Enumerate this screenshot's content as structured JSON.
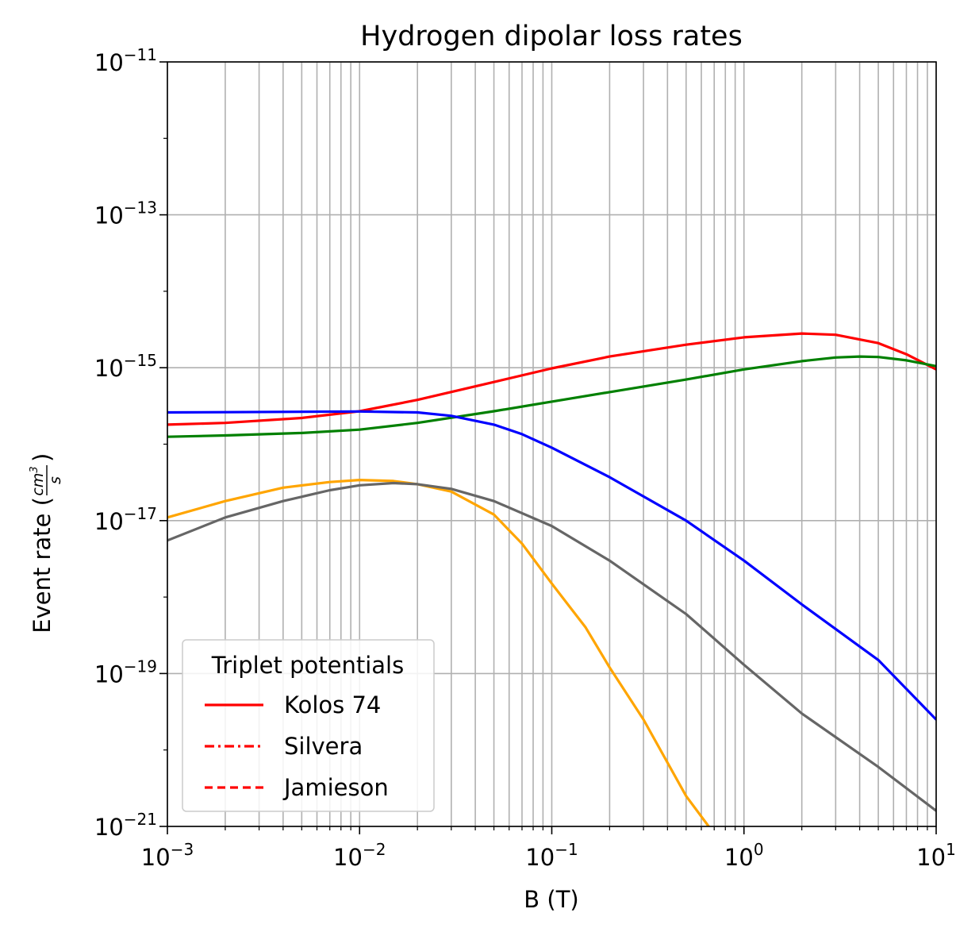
{
  "chart_data": {
    "type": "line",
    "title": "Hydrogen dipolar loss rates",
    "xlabel": "B (T)",
    "ylabel": "Event rate (cm³/s)",
    "ylabel_text": "Event rate (",
    "ylabel_frac_num": "cm",
    "ylabel_frac_num_exp": "3",
    "ylabel_frac_den": "s",
    "ylabel_close": ")",
    "xscale": "log",
    "yscale": "log",
    "xlim": [
      0.001,
      10
    ],
    "ylim": [
      1e-21,
      1e-11
    ],
    "grid": "both (major and minor on x)",
    "x_ticks": [
      {
        "base": "10",
        "exp": "−3"
      },
      {
        "base": "10",
        "exp": "−2"
      },
      {
        "base": "10",
        "exp": "−1"
      },
      {
        "base": "10",
        "exp": "0"
      },
      {
        "base": "10",
        "exp": "1"
      }
    ],
    "y_ticks": [
      {
        "base": "10",
        "exp": "−21"
      },
      {
        "base": "10",
        "exp": "−19"
      },
      {
        "base": "10",
        "exp": "−17"
      },
      {
        "base": "10",
        "exp": "−15"
      },
      {
        "base": "10",
        "exp": "−13"
      },
      {
        "base": "10",
        "exp": "−11"
      }
    ],
    "legend": {
      "title": "Triplet potentials",
      "placement": "lower-left",
      "entries": [
        {
          "label": "Kolos 74",
          "style": "solid",
          "color": "#ff0000"
        },
        {
          "label": "Silvera",
          "style": "dashdot",
          "color": "#ff0000"
        },
        {
          "label": "Jamieson",
          "style": "dashed",
          "color": "#ff0000"
        }
      ]
    },
    "series": [
      {
        "color": "#ff0000",
        "style": "solid",
        "x": [
          0.001,
          0.002,
          0.005,
          0.01,
          0.02,
          0.05,
          0.1,
          0.2,
          0.5,
          1,
          2,
          3,
          5,
          7,
          10
        ],
        "y": [
          1.8e-16,
          1.9e-16,
          2.2e-16,
          2.7e-16,
          3.8e-16,
          6.5e-16,
          9.8e-16,
          1.4e-15,
          2e-15,
          2.5e-15,
          2.8e-15,
          2.7e-15,
          2.1e-15,
          1.5e-15,
          9.5e-16
        ]
      },
      {
        "color": "#008000",
        "style": "solid",
        "x": [
          0.001,
          0.002,
          0.005,
          0.01,
          0.02,
          0.05,
          0.1,
          0.2,
          0.5,
          1,
          2,
          3,
          4,
          5,
          7,
          10
        ],
        "y": [
          1.25e-16,
          1.3e-16,
          1.4e-16,
          1.55e-16,
          1.9e-16,
          2.7e-16,
          3.6e-16,
          4.8e-16,
          7e-16,
          9.5e-16,
          1.22e-15,
          1.36e-15,
          1.4e-15,
          1.38e-15,
          1.25e-15,
          1.05e-15
        ]
      },
      {
        "color": "#0000ff",
        "style": "solid",
        "x": [
          0.001,
          0.002,
          0.005,
          0.01,
          0.02,
          0.03,
          0.05,
          0.07,
          0.1,
          0.2,
          0.5,
          1,
          2,
          5,
          10
        ],
        "y": [
          2.6e-16,
          2.62e-16,
          2.65e-16,
          2.68e-16,
          2.6e-16,
          2.35e-16,
          1.8e-16,
          1.35e-16,
          9e-17,
          3.7e-17,
          1e-17,
          3e-18,
          8e-19,
          1.5e-19,
          2.5e-20
        ]
      },
      {
        "color": "#ffa500",
        "style": "solid",
        "x": [
          0.001,
          0.002,
          0.004,
          0.007,
          0.01,
          0.015,
          0.02,
          0.03,
          0.05,
          0.07,
          0.1,
          0.15,
          0.2,
          0.3,
          0.5,
          0.7
        ],
        "y": [
          1.1e-17,
          1.8e-17,
          2.7e-17,
          3.2e-17,
          3.4e-17,
          3.3e-17,
          3e-17,
          2.4e-17,
          1.2e-17,
          5e-18,
          1.5e-18,
          4e-19,
          1.2e-19,
          2.5e-20,
          2.5e-21,
          8e-22
        ]
      },
      {
        "color": "#666666",
        "style": "solid",
        "x": [
          0.001,
          0.002,
          0.004,
          0.007,
          0.01,
          0.015,
          0.02,
          0.03,
          0.05,
          0.1,
          0.2,
          0.5,
          1,
          2,
          5,
          10
        ],
        "y": [
          5.5e-18,
          1.1e-17,
          1.8e-17,
          2.5e-17,
          2.9e-17,
          3.1e-17,
          3e-17,
          2.6e-17,
          1.8e-17,
          8.5e-18,
          3e-18,
          6e-19,
          1.3e-19,
          3e-20,
          6e-21,
          1.6e-21
        ]
      }
    ]
  }
}
